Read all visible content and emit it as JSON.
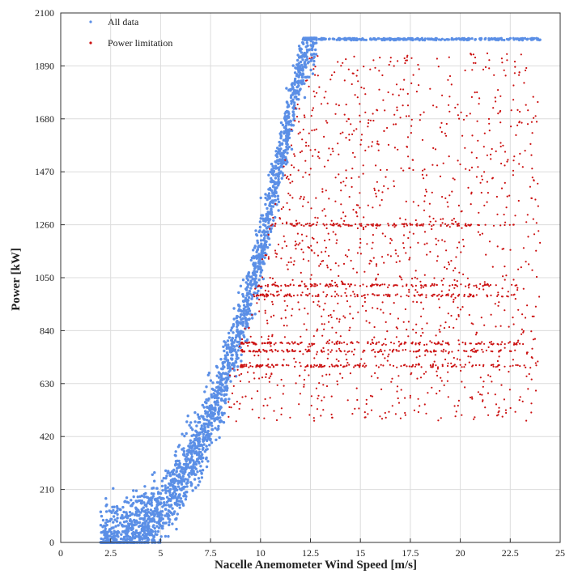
{
  "chart_data": {
    "type": "scatter",
    "title": "",
    "xlabel": "Nacelle Anemometer Wind Speed [m/s]",
    "ylabel": "Power [kW]",
    "xlim": [
      0,
      25
    ],
    "ylim": [
      0,
      2100
    ],
    "x_ticks": [
      0,
      2.5,
      5,
      7.5,
      10,
      12.5,
      15,
      17.5,
      20,
      22.5,
      25
    ],
    "x_tick_labels": [
      "0",
      "2.5",
      "5",
      "7.5",
      "10",
      "12.5",
      "15",
      "17.5",
      "20",
      "22.5",
      "25"
    ],
    "y_ticks": [
      0,
      210,
      420,
      630,
      840,
      1050,
      1260,
      1470,
      1680,
      1890,
      2100
    ],
    "y_tick_labels": [
      "0",
      "210",
      "420",
      "630",
      "840",
      "1050",
      "1260",
      "1470",
      "1680",
      "1890",
      "2100"
    ],
    "grid": true,
    "legend_position": "top-left",
    "series": [
      {
        "name": "All data",
        "color": "#5b8fe6",
        "marker": "dot",
        "curve": {
          "x": [
            2.0,
            3.0,
            4.0,
            5.0,
            6.0,
            7.0,
            8.0,
            9.0,
            10.0,
            10.5,
            11.0,
            11.5,
            12.0,
            12.5,
            13.0,
            24.0
          ],
          "y_center": [
            0,
            20,
            60,
            130,
            250,
            400,
            600,
            860,
            1150,
            1330,
            1520,
            1700,
            1880,
            1990,
            2000,
            2000
          ],
          "spread_kW": 70
        }
      },
      {
        "name": "Power limitation",
        "color": "#cc1111",
        "marker": "dot",
        "region": {
          "x_range": [
            8.2,
            24.0
          ],
          "y_range": [
            480,
            2000
          ]
        },
        "dense_levels_kW": [
          700,
          760,
          790,
          980,
          1020,
          1260
        ]
      }
    ]
  }
}
